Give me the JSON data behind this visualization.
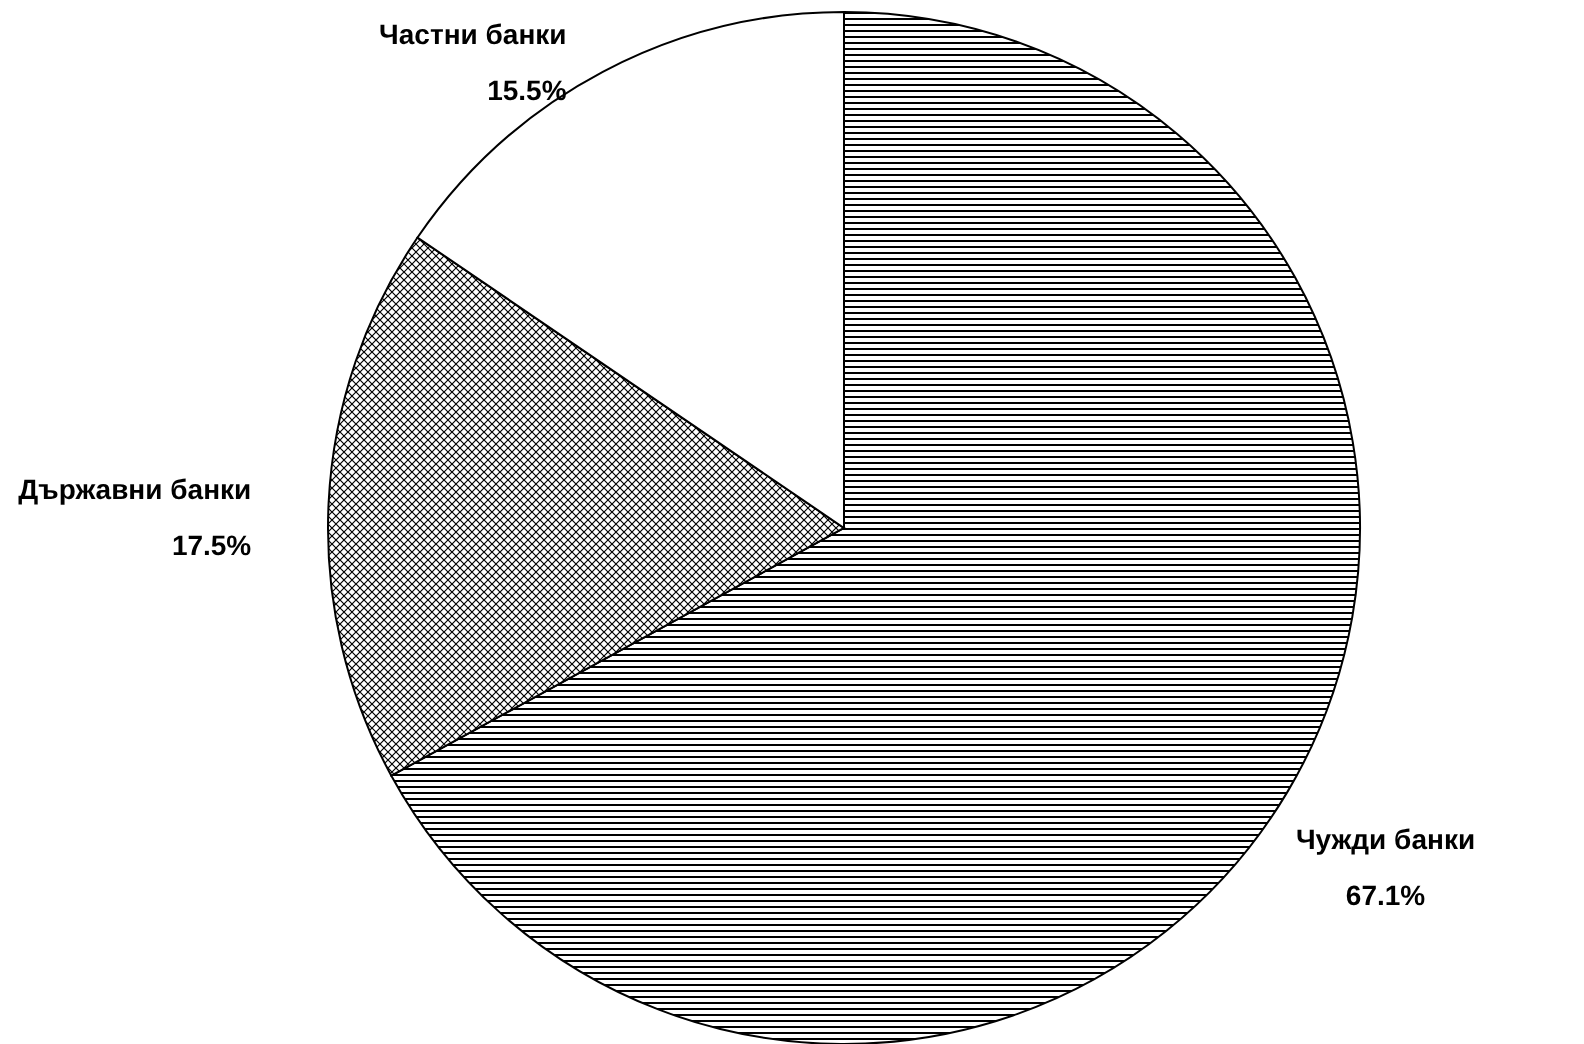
{
  "chart_data": {
    "type": "pie",
    "categories": [
      "Чужди банки",
      "Държавни банки",
      "Частни банки"
    ],
    "values": [
      67.1,
      17.5,
      15.5
    ],
    "colors": [
      "#000000",
      "#000000",
      "#ffffff"
    ],
    "value_labels": [
      "67.1%",
      "17.5%",
      "15.5%"
    ]
  }
}
